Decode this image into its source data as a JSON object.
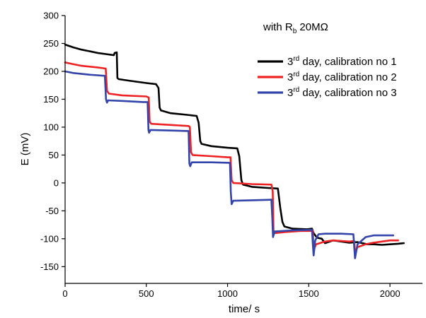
{
  "chart_data": {
    "type": "line",
    "title": "",
    "xlabel": "time/ s",
    "ylabel": "E (mV)",
    "xlim": [
      0,
      2200
    ],
    "ylim": [
      -180,
      300
    ],
    "x_ticks": [
      0,
      500,
      1000,
      1500,
      2000
    ],
    "y_ticks": [
      -150,
      -100,
      -50,
      0,
      50,
      100,
      150,
      200,
      250,
      300
    ],
    "grid": false,
    "legend_placement": "top-right",
    "annotation": {
      "prefix": "with R",
      "subscript": "b",
      "suffix": " 20MΩ"
    },
    "series": [
      {
        "name": "3rd day, calibration no 1",
        "name_prefix": "3",
        "name_superscript": "rd",
        "name_suffix": " day, calibration no 1",
        "color": "#000000",
        "points": [
          [
            0,
            248
          ],
          [
            50,
            243
          ],
          [
            100,
            239
          ],
          [
            150,
            236
          ],
          [
            200,
            233
          ],
          [
            250,
            231
          ],
          [
            300,
            229
          ],
          [
            305,
            233
          ],
          [
            318,
            234
          ],
          [
            322,
            188
          ],
          [
            330,
            186
          ],
          [
            400,
            183
          ],
          [
            500,
            179
          ],
          [
            560,
            177
          ],
          [
            575,
            170
          ],
          [
            582,
            135
          ],
          [
            590,
            130
          ],
          [
            650,
            125
          ],
          [
            750,
            122
          ],
          [
            810,
            120
          ],
          [
            822,
            108
          ],
          [
            832,
            75
          ],
          [
            840,
            70
          ],
          [
            900,
            66
          ],
          [
            1000,
            63
          ],
          [
            1060,
            62
          ],
          [
            1072,
            48
          ],
          [
            1085,
            5
          ],
          [
            1095,
            -3
          ],
          [
            1150,
            -7
          ],
          [
            1250,
            -9
          ],
          [
            1310,
            -10
          ],
          [
            1325,
            -45
          ],
          [
            1338,
            -70
          ],
          [
            1350,
            -78
          ],
          [
            1400,
            -82
          ],
          [
            1490,
            -83
          ],
          [
            1520,
            -82
          ],
          [
            1530,
            -90
          ],
          [
            1550,
            -98
          ],
          [
            1580,
            -100
          ],
          [
            1600,
            -108
          ],
          [
            1650,
            -103
          ],
          [
            1700,
            -105
          ],
          [
            1750,
            -107
          ],
          [
            1800,
            -106
          ],
          [
            1830,
            -108
          ],
          [
            1860,
            -110
          ],
          [
            1900,
            -110
          ],
          [
            1950,
            -111
          ],
          [
            2000,
            -110
          ],
          [
            2050,
            -109
          ],
          [
            2085,
            -108
          ]
        ]
      },
      {
        "name": "3rd day, calibration no 2",
        "name_prefix": "3",
        "name_superscript": "rd",
        "name_suffix": " day, calibration no 2",
        "color": "#ee2222",
        "points": [
          [
            0,
            216
          ],
          [
            30,
            214
          ],
          [
            100,
            210
          ],
          [
            200,
            207
          ],
          [
            250,
            205
          ],
          [
            258,
            165
          ],
          [
            270,
            160
          ],
          [
            350,
            157
          ],
          [
            500,
            155
          ],
          [
            515,
            153
          ],
          [
            520,
            110
          ],
          [
            530,
            106
          ],
          [
            650,
            104
          ],
          [
            760,
            102
          ],
          [
            768,
            100
          ],
          [
            775,
            55
          ],
          [
            785,
            50
          ],
          [
            900,
            48
          ],
          [
            1000,
            46
          ],
          [
            1018,
            46
          ],
          [
            1025,
            5
          ],
          [
            1035,
            0
          ],
          [
            1150,
            -2
          ],
          [
            1270,
            -3
          ],
          [
            1278,
            -15
          ],
          [
            1283,
            -85
          ],
          [
            1290,
            -90
          ],
          [
            1350,
            -88
          ],
          [
            1450,
            -86
          ],
          [
            1525,
            -86
          ],
          [
            1530,
            -120
          ],
          [
            1545,
            -110
          ],
          [
            1600,
            -105
          ],
          [
            1650,
            -103
          ],
          [
            1700,
            -104
          ],
          [
            1750,
            -105
          ],
          [
            1780,
            -104
          ],
          [
            1785,
            -125
          ],
          [
            1800,
            -115
          ],
          [
            1850,
            -110
          ],
          [
            1900,
            -107
          ],
          [
            1950,
            -105
          ],
          [
            2000,
            -103
          ],
          [
            2050,
            -103
          ]
        ]
      },
      {
        "name": "3rd day, calibration no 3",
        "name_prefix": "3",
        "name_superscript": "rd",
        "name_suffix": " day, calibration no 3",
        "color": "#3344aa",
        "points": [
          [
            0,
            200
          ],
          [
            50,
            197
          ],
          [
            150,
            194
          ],
          [
            245,
            192
          ],
          [
            252,
            150
          ],
          [
            258,
            144
          ],
          [
            265,
            148
          ],
          [
            350,
            147
          ],
          [
            480,
            145
          ],
          [
            508,
            145
          ],
          [
            513,
            95
          ],
          [
            517,
            90
          ],
          [
            525,
            95
          ],
          [
            650,
            94
          ],
          [
            760,
            93
          ],
          [
            765,
            35
          ],
          [
            770,
            30
          ],
          [
            780,
            37
          ],
          [
            900,
            37
          ],
          [
            1015,
            36
          ],
          [
            1020,
            -15
          ],
          [
            1025,
            -38
          ],
          [
            1035,
            -32
          ],
          [
            1150,
            -31
          ],
          [
            1270,
            -30
          ],
          [
            1275,
            -60
          ],
          [
            1280,
            -97
          ],
          [
            1290,
            -87
          ],
          [
            1400,
            -85
          ],
          [
            1520,
            -84
          ],
          [
            1525,
            -110
          ],
          [
            1530,
            -130
          ],
          [
            1540,
            -103
          ],
          [
            1560,
            -92
          ],
          [
            1600,
            -91
          ],
          [
            1700,
            -91
          ],
          [
            1775,
            -92
          ],
          [
            1780,
            -115
          ],
          [
            1785,
            -135
          ],
          [
            1800,
            -110
          ],
          [
            1850,
            -97
          ],
          [
            1900,
            -94
          ],
          [
            2000,
            -94
          ],
          [
            2020,
            -94
          ]
        ]
      }
    ]
  }
}
